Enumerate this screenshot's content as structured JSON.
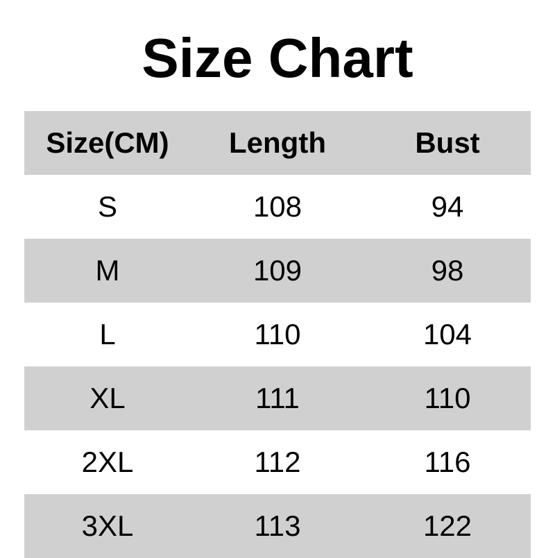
{
  "title": "Size Chart",
  "table": {
    "headers": [
      "Size(CM)",
      "Length",
      "Bust"
    ],
    "rows": [
      [
        "S",
        "108",
        "94"
      ],
      [
        "M",
        "109",
        "98"
      ],
      [
        "L",
        "110",
        "104"
      ],
      [
        "XL",
        "111",
        "110"
      ],
      [
        "2XL",
        "112",
        "116"
      ],
      [
        "3XL",
        "113",
        "122"
      ]
    ]
  },
  "colors": {
    "shade": "#d0d0d0",
    "background": "#ffffff",
    "text": "#000000"
  }
}
